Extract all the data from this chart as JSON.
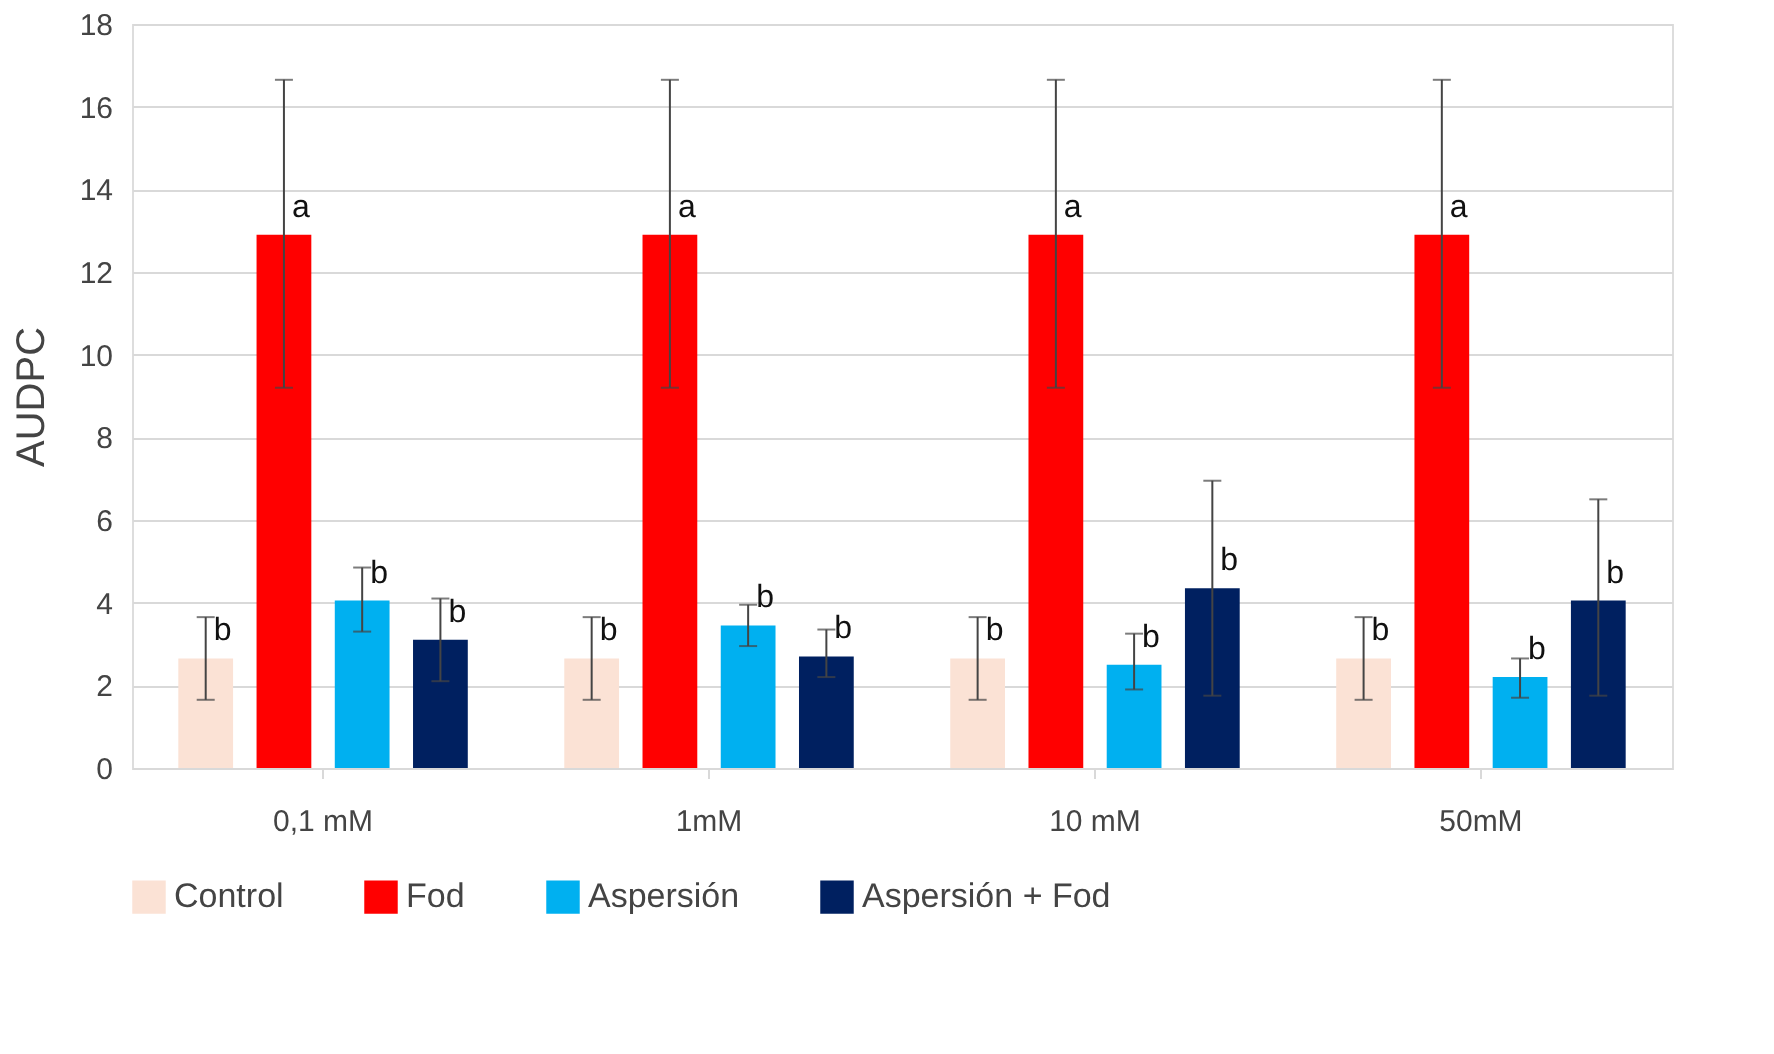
{
  "chart_data": {
    "type": "bar",
    "ylabel": "AUDPC",
    "categories": [
      "0,1 mM",
      "1mM",
      "10 mM",
      "50mM"
    ],
    "series": [
      {
        "name": "Control",
        "color": "#fbe2d5",
        "values": [
          2.65,
          2.65,
          2.65,
          2.65
        ],
        "errors": [
          [
            1.65,
            3.65
          ],
          [
            1.65,
            3.65
          ],
          [
            1.65,
            3.65
          ],
          [
            1.65,
            3.65
          ]
        ],
        "value_labels": [
          "b",
          "b",
          "b",
          "b"
        ]
      },
      {
        "name": "Fod",
        "color": "#ff0000",
        "values": [
          12.9,
          12.9,
          12.9,
          12.9
        ],
        "errors": [
          [
            9.2,
            16.65
          ],
          [
            9.2,
            16.65
          ],
          [
            9.2,
            16.65
          ],
          [
            9.2,
            16.65
          ]
        ],
        "value_labels": [
          "a",
          "a",
          "a",
          "a"
        ]
      },
      {
        "name": "Aspersión",
        "color": "#00b0f0",
        "values": [
          4.05,
          3.45,
          2.5,
          2.2
        ],
        "errors": [
          [
            3.3,
            4.85
          ],
          [
            2.95,
            3.95
          ],
          [
            1.9,
            3.25
          ],
          [
            1.7,
            2.65
          ]
        ],
        "value_labels": [
          "b",
          "b",
          "b",
          "b"
        ]
      },
      {
        "name": "Aspersión + Fod",
        "color": "#002060",
        "values": [
          3.1,
          2.7,
          4.35,
          4.05
        ],
        "errors": [
          [
            2.1,
            4.1
          ],
          [
            2.2,
            3.35
          ],
          [
            1.75,
            6.95
          ],
          [
            1.75,
            6.5
          ]
        ],
        "value_labels": [
          "b",
          "b",
          "b",
          "b"
        ]
      }
    ],
    "ylim": [
      0,
      18
    ],
    "yticks": [
      0,
      2,
      4,
      6,
      8,
      10,
      12,
      14,
      16,
      18
    ],
    "grid": "y",
    "legend": "bottom"
  }
}
